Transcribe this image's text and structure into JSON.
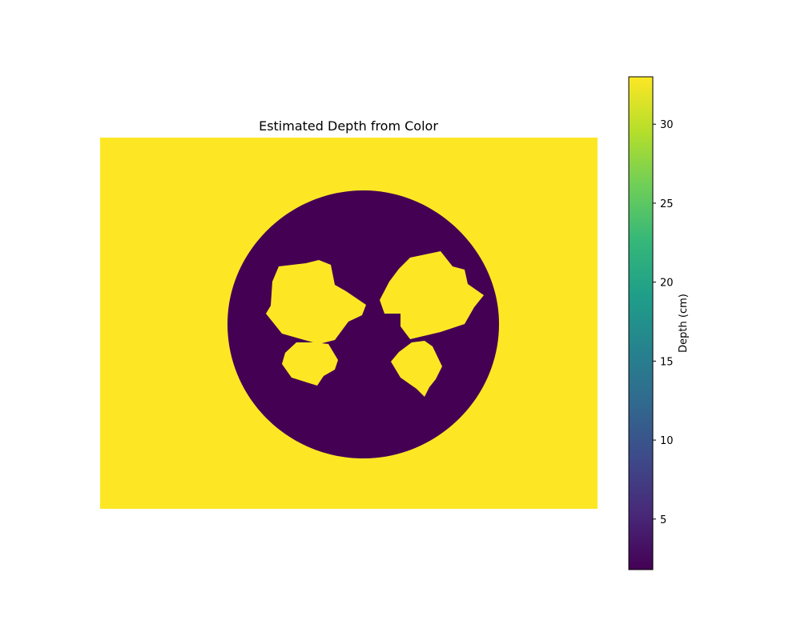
{
  "chart_data": {
    "type": "heatmap",
    "title": "Estimated Depth from Color",
    "axes_visible": false,
    "colormap": "viridis",
    "colorbar": {
      "label": "Depth (cm)",
      "range": [
        1.8,
        33
      ],
      "ticks": [
        5,
        10,
        15,
        20,
        25,
        30
      ],
      "tick_labels": [
        "5",
        "10",
        "15",
        "20",
        "25",
        "30"
      ],
      "stops": [
        "#440154",
        "#482878",
        "#3e4989",
        "#31688e",
        "#26828e",
        "#1f9e89",
        "#35b779",
        "#6ece58",
        "#b5de2b",
        "#fde725"
      ]
    },
    "regions": [
      {
        "name": "background",
        "depth": 33
      },
      {
        "name": "dish",
        "depth": 1.8
      },
      {
        "name": "object-top-left",
        "depth": 33
      },
      {
        "name": "object-top-right",
        "depth": 33
      },
      {
        "name": "object-bottom-left",
        "depth": 33
      },
      {
        "name": "object-bottom-right",
        "depth": 33
      }
    ]
  }
}
